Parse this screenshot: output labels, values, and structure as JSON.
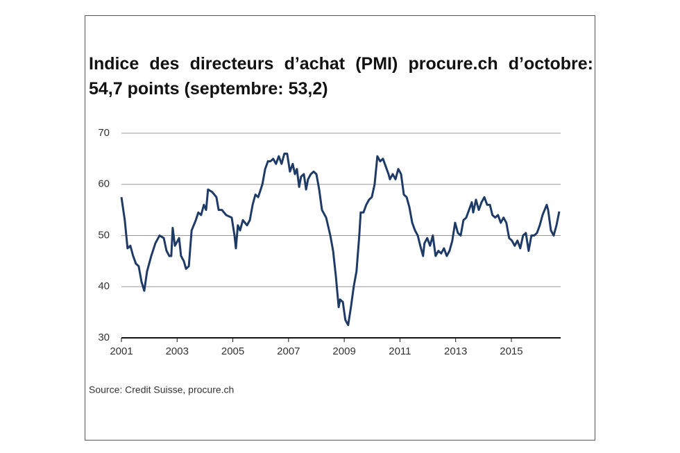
{
  "chart_data": {
    "type": "line",
    "title": "Indice des directeurs d’achat (PMI) procure.ch d’octobre: 54,7 points (septembre: 53,2)",
    "source": "Source: Credit Suisse, procure.ch",
    "x": [
      2001.0,
      2001.12,
      2001.22,
      2001.32,
      2001.42,
      2001.52,
      2001.62,
      2001.72,
      2001.82,
      2001.92,
      2002.07,
      2002.22,
      2002.37,
      2002.52,
      2002.62,
      2002.72,
      2002.79,
      2002.84,
      2002.92,
      2003.02,
      2003.07,
      2003.14,
      2003.24,
      2003.32,
      2003.42,
      2003.52,
      2003.67,
      2003.76,
      2003.86,
      2003.96,
      2004.04,
      2004.11,
      2004.26,
      2004.41,
      2004.49,
      2004.61,
      2004.76,
      2004.96,
      2005.06,
      2005.11,
      2005.18,
      2005.26,
      2005.36,
      2005.51,
      2005.61,
      2005.71,
      2005.81,
      2005.91,
      2006.06,
      2006.16,
      2006.26,
      2006.35,
      2006.45,
      2006.55,
      2006.65,
      2006.75,
      2006.85,
      2006.95,
      2007.05,
      2007.15,
      2007.23,
      2007.3,
      2007.38,
      2007.45,
      2007.55,
      2007.63,
      2007.7,
      2007.8,
      2007.9,
      2008.0,
      2008.1,
      2008.2,
      2008.35,
      2008.5,
      2008.6,
      2008.7,
      2008.8,
      2008.85,
      2008.95,
      2009.04,
      2009.14,
      2009.24,
      2009.34,
      2009.44,
      2009.54,
      2009.59,
      2009.69,
      2009.79,
      2009.89,
      2009.99,
      2010.09,
      2010.19,
      2010.29,
      2010.39,
      2010.49,
      2010.59,
      2010.64,
      2010.74,
      2010.84,
      2010.94,
      2011.04,
      2011.14,
      2011.24,
      2011.34,
      2011.44,
      2011.54,
      2011.64,
      2011.73,
      2011.83,
      2011.88,
      2011.98,
      2012.08,
      2012.18,
      2012.28,
      2012.38,
      2012.48,
      2012.58,
      2012.68,
      2012.78,
      2012.88,
      2012.98,
      2013.08,
      2013.18,
      2013.28,
      2013.38,
      2013.48,
      2013.58,
      2013.63,
      2013.73,
      2013.83,
      2013.93,
      2014.03,
      2014.13,
      2014.23,
      2014.32,
      2014.42,
      2014.52,
      2014.62,
      2014.72,
      2014.82,
      2014.92,
      2015.02,
      2015.12,
      2015.22,
      2015.32,
      2015.42,
      2015.52,
      2015.62,
      2015.72,
      2015.82,
      2015.92,
      2016.02,
      2016.12,
      2016.27,
      2016.32,
      2016.42,
      2016.52,
      2016.62,
      2016.72
    ],
    "series": [
      {
        "color": "#1e3a66",
        "values": [
          57.5,
          53,
          47.5,
          48,
          46,
          44.5,
          44,
          41,
          39.2,
          43,
          46,
          48.5,
          50,
          49.5,
          47,
          46,
          46,
          51.5,
          48,
          49,
          49.5,
          46,
          45,
          43.5,
          44,
          51,
          53,
          54.5,
          54,
          56,
          55,
          59,
          58.5,
          57.5,
          55,
          55,
          54,
          53.5,
          50,
          47.5,
          52,
          51,
          53,
          52,
          53,
          56,
          58,
          57.5,
          60,
          63,
          64.5,
          64.5,
          65,
          64,
          65.5,
          64,
          66,
          66,
          62.5,
          64,
          62,
          63,
          59.5,
          61.5,
          62,
          59,
          61,
          62,
          62.5,
          62,
          59,
          55,
          53.5,
          50,
          47,
          42,
          36,
          37.5,
          37,
          33.5,
          32.5,
          36,
          40,
          43,
          50,
          54.5,
          54.5,
          56,
          57,
          57.5,
          60,
          65.5,
          64.5,
          65,
          63.5,
          62,
          61,
          62,
          61,
          63,
          62,
          58,
          57.5,
          55.5,
          52.5,
          51,
          50,
          48,
          46,
          48.5,
          49.5,
          48,
          50,
          46,
          47,
          46.5,
          47.5,
          46,
          47,
          49,
          52.5,
          50.5,
          50,
          53,
          53.5,
          55,
          56.5,
          54.5,
          57,
          55,
          56.5,
          57.5,
          56,
          56,
          54,
          53.5,
          54,
          52.5,
          53.5,
          52.5,
          49.5,
          49,
          48,
          49,
          47.5,
          50,
          50.5,
          47,
          50,
          50,
          50.5,
          52,
          54,
          56,
          55,
          51,
          50,
          52,
          54.7
        ]
      }
    ],
    "xlim": [
      2001,
      2016.77
    ],
    "xticks": [
      2001,
      2003,
      2005,
      2007,
      2009,
      2011,
      2013,
      2015
    ],
    "ylim": [
      30,
      70
    ],
    "yticks": [
      30,
      40,
      50,
      60,
      70
    ],
    "grid": true
  }
}
